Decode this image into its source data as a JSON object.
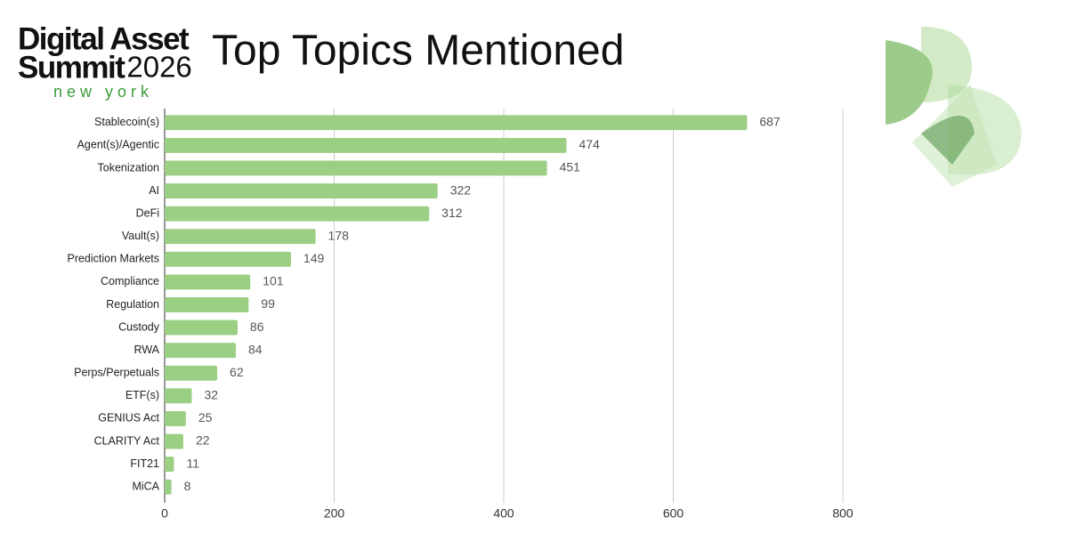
{
  "header": {
    "brand_line1": "Digital Asset",
    "brand_line2": "Summit",
    "brand_year": "2026",
    "brand_city": "new york"
  },
  "chart_data": {
    "type": "bar",
    "orientation": "horizontal",
    "title": "Top Topics Mentioned",
    "categories": [
      "Stablecoin(s)",
      "Agent(s)/Agentic",
      "Tokenization",
      "AI",
      "DeFi",
      "Vault(s)",
      "Prediction Markets",
      "Compliance",
      "Regulation",
      "Custody",
      "RWA",
      "Perps/Perpetuals",
      "ETF(s)",
      "GENIUS Act",
      "CLARITY Act",
      "FIT21",
      "MiCA"
    ],
    "values": [
      687,
      474,
      451,
      322,
      312,
      178,
      149,
      101,
      99,
      86,
      84,
      62,
      32,
      25,
      22,
      11,
      8
    ],
    "color": "#9bcf84",
    "xlim": [
      0,
      800
    ],
    "xticks": [
      0,
      200,
      400,
      600,
      800
    ],
    "grid": true
  }
}
